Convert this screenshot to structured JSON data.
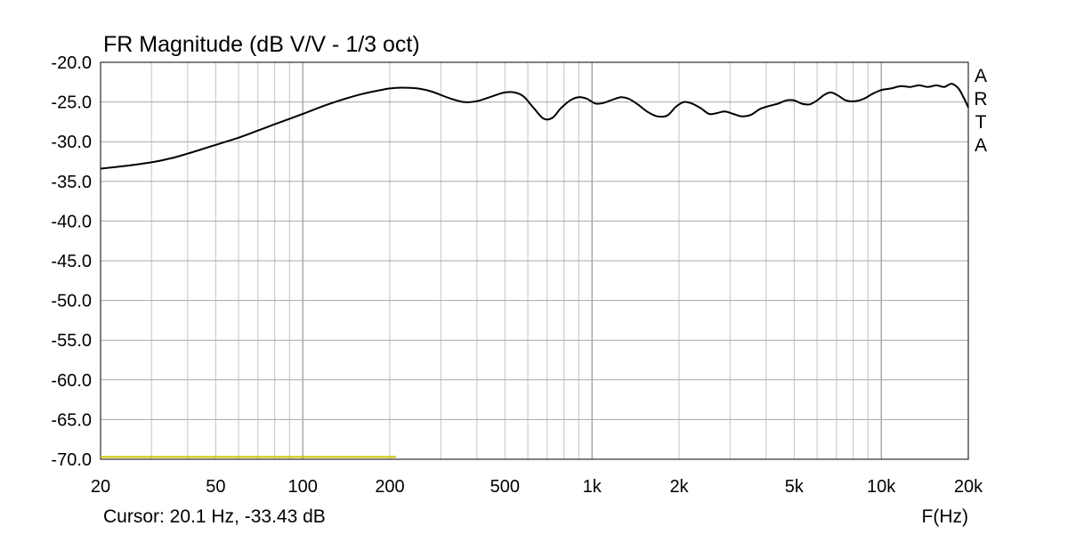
{
  "chart_data": {
    "type": "line",
    "title": "FR Magnitude (dB V/V - 1/3 oct)",
    "xlabel": "F(Hz)",
    "ylabel": "",
    "x_scale": "log",
    "xlim": [
      20,
      20000
    ],
    "ylim": [
      -70,
      -20
    ],
    "grid": true,
    "x_ticks": [
      {
        "value": 20,
        "label": "20"
      },
      {
        "value": 50,
        "label": "50"
      },
      {
        "value": 100,
        "label": "100"
      },
      {
        "value": 200,
        "label": "200"
      },
      {
        "value": 500,
        "label": "500"
      },
      {
        "value": 1000,
        "label": "1k"
      },
      {
        "value": 2000,
        "label": "2k"
      },
      {
        "value": 5000,
        "label": "5k"
      },
      {
        "value": 10000,
        "label": "10k"
      },
      {
        "value": 20000,
        "label": "20k"
      }
    ],
    "y_ticks": [
      {
        "value": -20,
        "label": "-20.0"
      },
      {
        "value": -25,
        "label": "-25.0"
      },
      {
        "value": -30,
        "label": "-30.0"
      },
      {
        "value": -35,
        "label": "-35.0"
      },
      {
        "value": -40,
        "label": "-40.0"
      },
      {
        "value": -45,
        "label": "-45.0"
      },
      {
        "value": -50,
        "label": "-50.0"
      },
      {
        "value": -55,
        "label": "-55.0"
      },
      {
        "value": -60,
        "label": "-60.0"
      },
      {
        "value": -65,
        "label": "-65.0"
      },
      {
        "value": -70,
        "label": "-70.0"
      }
    ],
    "series": [
      {
        "color": "#000000",
        "points": [
          [
            20,
            -33.4
          ],
          [
            25,
            -33.0
          ],
          [
            30,
            -32.6
          ],
          [
            35,
            -32.1
          ],
          [
            40,
            -31.5
          ],
          [
            50,
            -30.4
          ],
          [
            60,
            -29.5
          ],
          [
            70,
            -28.6
          ],
          [
            80,
            -27.8
          ],
          [
            100,
            -26.5
          ],
          [
            120,
            -25.4
          ],
          [
            140,
            -24.6
          ],
          [
            160,
            -24.0
          ],
          [
            180,
            -23.6
          ],
          [
            200,
            -23.3
          ],
          [
            220,
            -23.2
          ],
          [
            250,
            -23.3
          ],
          [
            280,
            -23.7
          ],
          [
            320,
            -24.5
          ],
          [
            360,
            -25.0
          ],
          [
            400,
            -24.9
          ],
          [
            450,
            -24.3
          ],
          [
            500,
            -23.8
          ],
          [
            540,
            -23.8
          ],
          [
            580,
            -24.3
          ],
          [
            630,
            -25.8
          ],
          [
            680,
            -27.1
          ],
          [
            730,
            -27.0
          ],
          [
            780,
            -25.8
          ],
          [
            840,
            -24.8
          ],
          [
            900,
            -24.4
          ],
          [
            960,
            -24.6
          ],
          [
            1030,
            -25.2
          ],
          [
            1100,
            -25.1
          ],
          [
            1180,
            -24.7
          ],
          [
            1260,
            -24.4
          ],
          [
            1340,
            -24.6
          ],
          [
            1440,
            -25.3
          ],
          [
            1550,
            -26.2
          ],
          [
            1680,
            -26.8
          ],
          [
            1820,
            -26.7
          ],
          [
            1950,
            -25.6
          ],
          [
            2080,
            -25.0
          ],
          [
            2220,
            -25.2
          ],
          [
            2380,
            -25.8
          ],
          [
            2540,
            -26.5
          ],
          [
            2700,
            -26.4
          ],
          [
            2880,
            -26.2
          ],
          [
            3080,
            -26.5
          ],
          [
            3300,
            -26.8
          ],
          [
            3550,
            -26.6
          ],
          [
            3800,
            -25.9
          ],
          [
            4100,
            -25.5
          ],
          [
            4400,
            -25.2
          ],
          [
            4700,
            -24.8
          ],
          [
            5000,
            -24.8
          ],
          [
            5300,
            -25.2
          ],
          [
            5650,
            -25.3
          ],
          [
            6000,
            -24.8
          ],
          [
            6350,
            -24.1
          ],
          [
            6700,
            -23.8
          ],
          [
            7100,
            -24.2
          ],
          [
            7550,
            -24.8
          ],
          [
            8100,
            -24.9
          ],
          [
            8700,
            -24.6
          ],
          [
            9300,
            -24.0
          ],
          [
            10000,
            -23.5
          ],
          [
            10800,
            -23.3
          ],
          [
            11700,
            -23.0
          ],
          [
            12600,
            -23.1
          ],
          [
            13500,
            -22.9
          ],
          [
            14500,
            -23.1
          ],
          [
            15500,
            -22.9
          ],
          [
            16500,
            -23.1
          ],
          [
            17500,
            -22.7
          ],
          [
            18500,
            -23.3
          ],
          [
            19300,
            -24.5
          ],
          [
            20000,
            -25.7
          ]
        ]
      }
    ],
    "reference_line": {
      "x_start": 20,
      "x_end": 210,
      "y": -69.7,
      "color": "#c8c400"
    },
    "side_label": [
      "A",
      "R",
      "T",
      "A"
    ],
    "cursor_text": "Cursor: 20.1 Hz, -33.43 dB"
  }
}
